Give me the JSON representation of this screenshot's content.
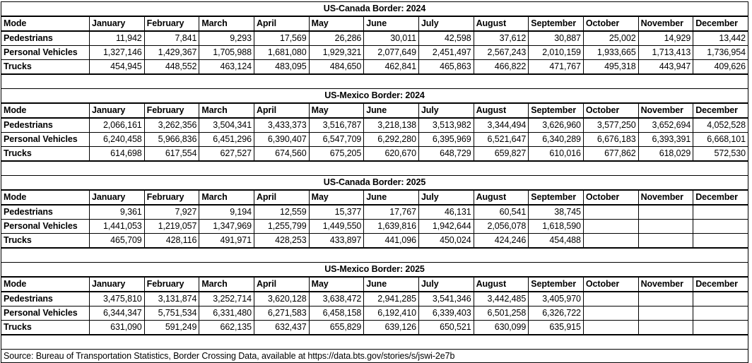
{
  "mode_header": "Mode",
  "months": [
    "January",
    "February",
    "March",
    "April",
    "May",
    "June",
    "July",
    "August",
    "September",
    "October",
    "November",
    "December"
  ],
  "tables": [
    {
      "title": "US-Canada Border: 2024",
      "rows": [
        {
          "label": "Pedestrians",
          "values": [
            "11,942",
            "7,841",
            "9,293",
            "17,569",
            "26,286",
            "30,011",
            "42,598",
            "37,612",
            "30,887",
            "25,002",
            "14,929",
            "13,442"
          ]
        },
        {
          "label": "Personal Vehicles",
          "values": [
            "1,327,146",
            "1,429,367",
            "1,705,988",
            "1,681,080",
            "1,929,321",
            "2,077,649",
            "2,451,497",
            "2,567,243",
            "2,010,159",
            "1,933,665",
            "1,713,413",
            "1,736,954"
          ]
        },
        {
          "label": "Trucks",
          "values": [
            "454,945",
            "448,552",
            "463,124",
            "483,095",
            "484,650",
            "462,841",
            "465,863",
            "466,822",
            "471,767",
            "495,318",
            "443,947",
            "409,626"
          ]
        }
      ]
    },
    {
      "title": "US-Mexico Border: 2024",
      "rows": [
        {
          "label": "Pedestrians",
          "values": [
            "2,066,161",
            "3,262,356",
            "3,504,341",
            "3,433,373",
            "3,516,787",
            "3,218,138",
            "3,513,982",
            "3,344,494",
            "3,626,960",
            "3,577,250",
            "3,652,694",
            "4,052,528"
          ]
        },
        {
          "label": "Personal Vehicles",
          "values": [
            "6,240,458",
            "5,966,836",
            "6,451,296",
            "6,390,407",
            "6,547,709",
            "6,292,280",
            "6,395,969",
            "6,521,647",
            "6,340,289",
            "6,676,183",
            "6,393,391",
            "6,668,101"
          ]
        },
        {
          "label": "Trucks",
          "values": [
            "614,698",
            "617,554",
            "627,527",
            "674,560",
            "675,205",
            "620,670",
            "648,729",
            "659,827",
            "610,016",
            "677,862",
            "618,029",
            "572,530"
          ]
        }
      ]
    },
    {
      "title": "US-Canada Border: 2025",
      "rows": [
        {
          "label": "Pedestrians",
          "values": [
            "9,361",
            "7,927",
            "9,194",
            "12,559",
            "15,377",
            "17,767",
            "46,131",
            "60,541",
            "38,745",
            "",
            "",
            ""
          ]
        },
        {
          "label": "Personal Vehicles",
          "values": [
            "1,441,053",
            "1,219,057",
            "1,347,969",
            "1,255,799",
            "1,449,550",
            "1,639,816",
            "1,942,644",
            "2,056,078",
            "1,618,590",
            "",
            "",
            ""
          ]
        },
        {
          "label": "Trucks",
          "values": [
            "465,709",
            "428,116",
            "491,971",
            "428,253",
            "433,897",
            "441,096",
            "450,024",
            "424,246",
            "454,488",
            "",
            "",
            ""
          ]
        }
      ]
    },
    {
      "title": "US-Mexico Border: 2025",
      "rows": [
        {
          "label": "Pedestrians",
          "values": [
            "3,475,810",
            "3,131,874",
            "3,252,714",
            "3,620,128",
            "3,638,472",
            "2,941,285",
            "3,541,346",
            "3,442,485",
            "3,405,970",
            "",
            "",
            ""
          ]
        },
        {
          "label": "Personal Vehicles",
          "values": [
            "6,344,347",
            "5,751,534",
            "6,331,480",
            "6,271,583",
            "6,458,158",
            "6,192,410",
            "6,339,403",
            "6,501,258",
            "6,326,722",
            "",
            "",
            ""
          ]
        },
        {
          "label": "Trucks",
          "values": [
            "631,090",
            "591,249",
            "662,135",
            "632,437",
            "655,829",
            "639,126",
            "650,521",
            "630,099",
            "635,915",
            "",
            "",
            ""
          ]
        }
      ]
    }
  ],
  "source": "Source: Bureau of Transportation Statistics, Border Crossing Data, available at https://data.bts.gov/stories/s/jswi-2e7b",
  "colors": {
    "text": "#000000",
    "border": "#000000",
    "background": "#ffffff"
  }
}
